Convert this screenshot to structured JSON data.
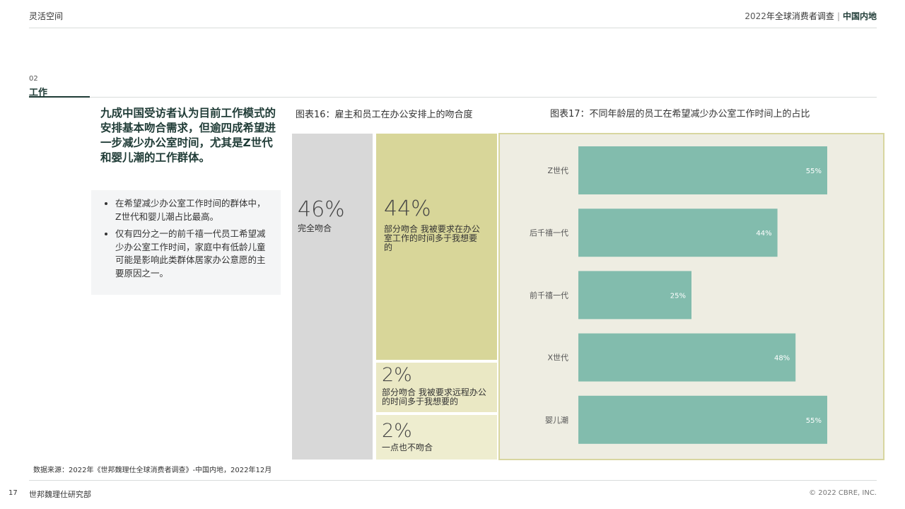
{
  "header": {
    "left_title": "灵活空间",
    "right_year": "2022",
    "right_title": "年全球消费者调查",
    "separator": "|",
    "right_region": "中国内地"
  },
  "section": {
    "number": "02",
    "title": "工作"
  },
  "headline": "九成中国受访者认为目前工作模式的安排基本吻合需求，但逾四成希望进一步减少办公室时间，尤其是Z世代和婴儿潮的工作群体。",
  "bullets": [
    "在希望减少办公室工作时间的群体中，Z世代和婴儿潮占比最高。",
    "仅有四分之一的前千禧一代员工希望减少办公室工作时间，家庭中有低龄儿童可能是影响此类群体居家办公意愿的主要原因之一。"
  ],
  "figure16": {
    "title": "图表16：雇主和员工在办公安排上的吻合度"
  },
  "figure17": {
    "title": "图表17：不同年龄层的员工在希望减少办公室工作时间上的占比"
  },
  "colors": {
    "fig16_full": "#d8d8d8",
    "fig16_partial_office": "#d8d699",
    "fig16_partial_remote": "#eae8c4",
    "fig16_none": "#eeedcf",
    "fig17_panel_bg": "#eeede2",
    "fig17_panel_border": "#d8d6a0",
    "fig17_bar": "#82bcad"
  },
  "chart_data": [
    {
      "type": "treemap",
      "title": "图表16：雇主和员工在办公安排上的吻合度",
      "categories": [
        "完全吻合",
        "部分吻合 我被要求在办公室工作的时间多于我想要的",
        "部分吻合 我被要求远程办公的时间多于我想要的",
        "一点也不吻合"
      ],
      "values": [
        46,
        44,
        2,
        2
      ],
      "value_labels": [
        "46%",
        "44%",
        "2%",
        "2%"
      ]
    },
    {
      "type": "bar",
      "orientation": "horizontal",
      "title": "图表17：不同年龄层的员工在希望减少办公室工作时间上的占比",
      "categories": [
        "Z世代",
        "后千禧一代",
        "前千禧一代",
        "X世代",
        "婴儿潮"
      ],
      "values": [
        55,
        44,
        25,
        48,
        55
      ],
      "value_labels": [
        "55%",
        "44%",
        "25%",
        "48%",
        "55%"
      ],
      "unit": "%",
      "xlim": [
        0,
        60
      ],
      "grid": false,
      "legend": "none"
    }
  ],
  "source": "数据来源：2022年《世邦魏理仕全球消费者调查》-中国内地，2022年12月",
  "footer": {
    "page_number": "17",
    "left": "世邦魏理仕研究部",
    "right": "© 2022 CBRE, INC."
  }
}
